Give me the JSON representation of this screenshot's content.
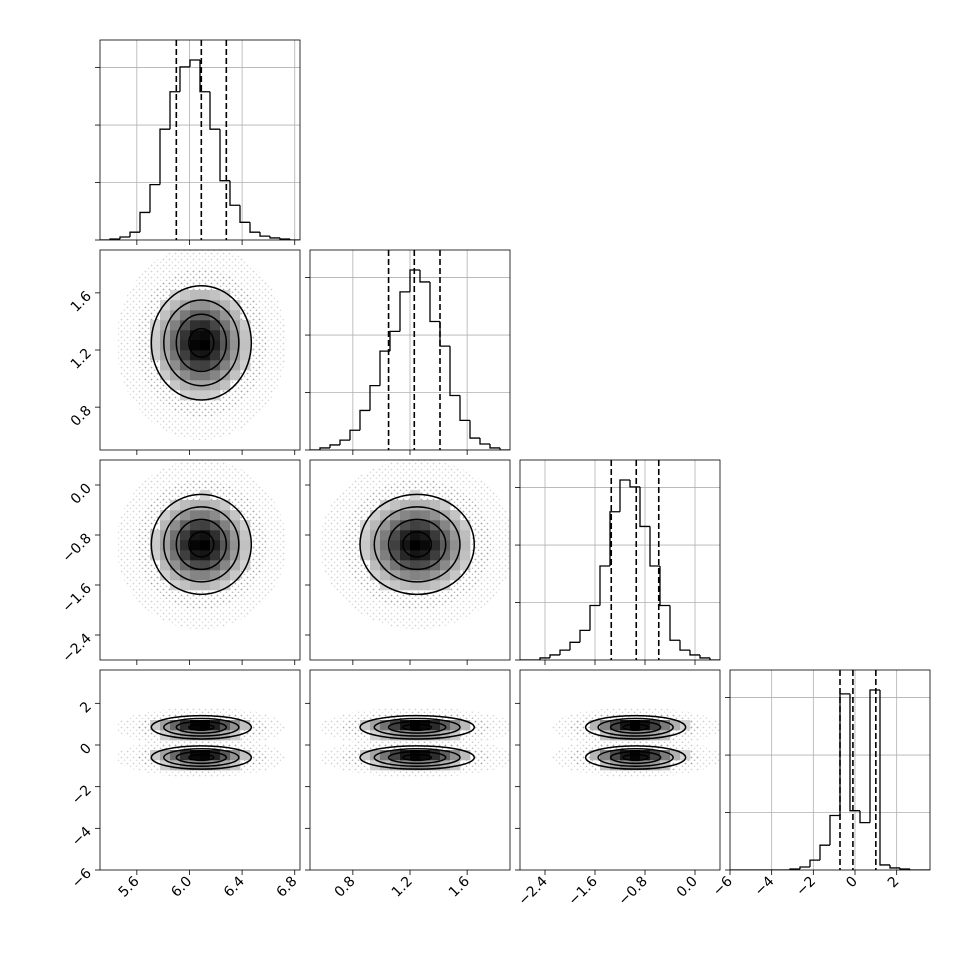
{
  "chart_data": {
    "type": "corner",
    "parameters": [
      {
        "lim": [
          5.32,
          6.84
        ],
        "ticks": [
          5.6,
          {
            "value": 6,
            "label": "6.0"
          },
          6.4,
          6.8
        ],
        "modes": [
          {
            "mean": 6.09,
            "sd": 0.19
          }
        ],
        "bins": [
          5.32,
          5.396,
          5.472,
          5.548,
          5.624,
          5.7,
          5.776,
          5.852,
          5.928,
          6.004,
          6.08,
          6.156,
          6.232,
          6.308,
          6.384,
          6.46,
          6.536,
          6.612,
          6.688,
          6.764,
          6.84
        ],
        "counts": [
          0,
          4,
          13,
          34,
          120,
          241,
          482,
          645,
          753,
          783,
          645,
          482,
          258,
          151,
          77,
          34,
          17,
          9,
          4,
          0
        ],
        "quantiles": [
          5.9,
          6.09,
          6.28
        ]
      },
      {
        "lim": [
          0.5,
          1.9
        ],
        "ticks": [
          0.8,
          1.2,
          1.6
        ],
        "modes": [
          {
            "mean": 1.25,
            "sd": 0.2
          }
        ],
        "bins": [
          0.5,
          0.57,
          0.64,
          0.71,
          0.78,
          0.85,
          0.92,
          0.99,
          1.06,
          1.13,
          1.2,
          1.27,
          1.34,
          1.41,
          1.48,
          1.55,
          1.62,
          1.69,
          1.76,
          1.83,
          1.9
        ],
        "counts": [
          0,
          9,
          22,
          43,
          86,
          172,
          280,
          430,
          516,
          688,
          783,
          731,
          559,
          452,
          237,
          129,
          52,
          26,
          9,
          0
        ],
        "quantiles": [
          1.05,
          1.23,
          1.41
        ]
      },
      {
        "lim": [
          -2.8,
          0.4
        ],
        "ticks": [
          {
            "value": -2.4,
            "label": "−2.4"
          },
          {
            "value": -1.6,
            "label": "−1.6"
          },
          {
            "value": -0.8,
            "label": "−0.8"
          },
          {
            "value": 0,
            "label": "0.0"
          }
        ],
        "modes": [
          {
            "mean": -0.95,
            "sd": 0.4
          }
        ],
        "bins": [
          -2.8,
          -2.64,
          -2.48,
          -2.32,
          -2.16,
          -2,
          -1.84,
          -1.68,
          -1.52,
          -1.36,
          -1.2,
          -1.04,
          -0.88,
          -0.72,
          -0.56,
          -0.4,
          -0.24,
          -0.08,
          0.08,
          0.24,
          0.4
        ],
        "counts": [
          0,
          0,
          9,
          22,
          43,
          77,
          129,
          237,
          409,
          645,
          783,
          753,
          581,
          409,
          237,
          86,
          43,
          22,
          9,
          0
        ],
        "quantiles": [
          -1.34,
          -0.94,
          -0.58
        ]
      },
      {
        "lim": [
          -6,
          3.6
        ],
        "ticks": [
          {
            "value": -6,
            "label": "−6"
          },
          {
            "value": -4,
            "label": "−4"
          },
          {
            "value": -2,
            "label": "−2"
          },
          0,
          2
        ],
        "modes": [
          {
            "mean": 0.85,
            "sd": 0.28
          },
          {
            "mean": -0.6,
            "sd": 0.28
          }
        ],
        "bins": [
          -6,
          -5.52,
          -5.04,
          -4.56,
          -4.08,
          -3.6,
          -3.12,
          -2.64,
          -2.16,
          -1.68,
          -1.2,
          -0.72,
          -0.24,
          0.24,
          0.72,
          1.2,
          1.68,
          2.16,
          2.64,
          3.12,
          3.6
        ],
        "counts": [
          0,
          0,
          0,
          0,
          0,
          0,
          4,
          13,
          43,
          108,
          237,
          766,
          258,
          206,
          783,
          22,
          9,
          4,
          0,
          0
        ],
        "quantiles": [
          -0.72,
          -0.1,
          1.0
        ]
      }
    ],
    "hist_ylim": [
      0,
      870
    ],
    "hist_yticks": [
      0,
      250,
      500,
      750
    ],
    "contour_levels": [
      0.5,
      1,
      1.5,
      2
    ],
    "grid": true,
    "color": "#000000"
  }
}
